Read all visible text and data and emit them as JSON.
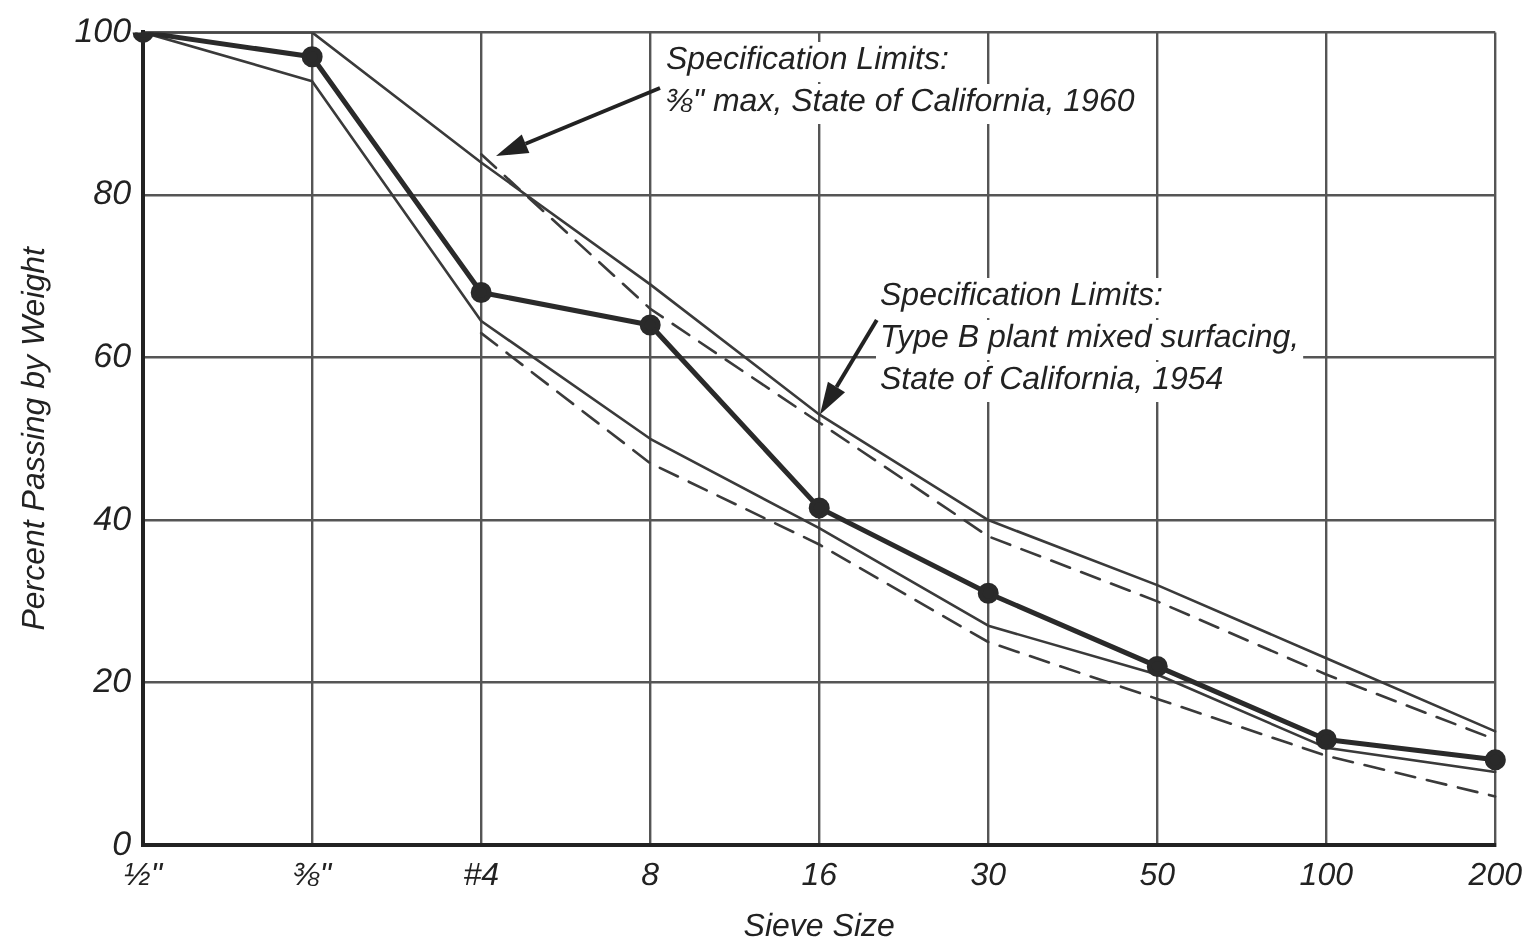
{
  "chart_data": {
    "type": "line",
    "xlabel": "Sieve Size",
    "ylabel": "Percent Passing by Weight",
    "categories": [
      "½\"",
      "⅜\"",
      "#4",
      "8",
      "16",
      "30",
      "50",
      "100",
      "200"
    ],
    "ylim": [
      0,
      100
    ],
    "yticks": [
      0,
      20,
      40,
      60,
      80,
      100
    ],
    "grid": true,
    "legend": false,
    "series": [
      {
        "color": "#2a2a2a",
        "marker": "circle",
        "line_style": "solid",
        "values": [
          100,
          97,
          68,
          64,
          41.5,
          31,
          22,
          13,
          10.5
        ]
      },
      {
        "color": "#3a3a3a",
        "marker": "none",
        "line_style": "solid",
        "values": [
          100,
          100,
          84,
          69,
          53,
          40,
          32,
          23,
          14
        ]
      },
      {
        "color": "#3a3a3a",
        "marker": "none",
        "line_style": "solid",
        "values": [
          100,
          94,
          64.5,
          50,
          39,
          27,
          21,
          12,
          9
        ]
      },
      {
        "color": "#3a3a3a",
        "marker": "none",
        "line_style": "dashed",
        "values": [
          null,
          null,
          85,
          66,
          52,
          38,
          30,
          21,
          13
        ]
      },
      {
        "color": "#3a3a3a",
        "marker": "none",
        "line_style": "dashed",
        "values": [
          null,
          null,
          63,
          47,
          37,
          25,
          18,
          11,
          6
        ]
      }
    ],
    "annotations": [
      "Specification Limits:\n⅜\" max, State of California, 1960",
      {
        "text": "Specification Limits:\nType B plant mixed surfacing,\nState of California, 1954",
        "x": "16",
        "y": 53
      }
    ]
  }
}
